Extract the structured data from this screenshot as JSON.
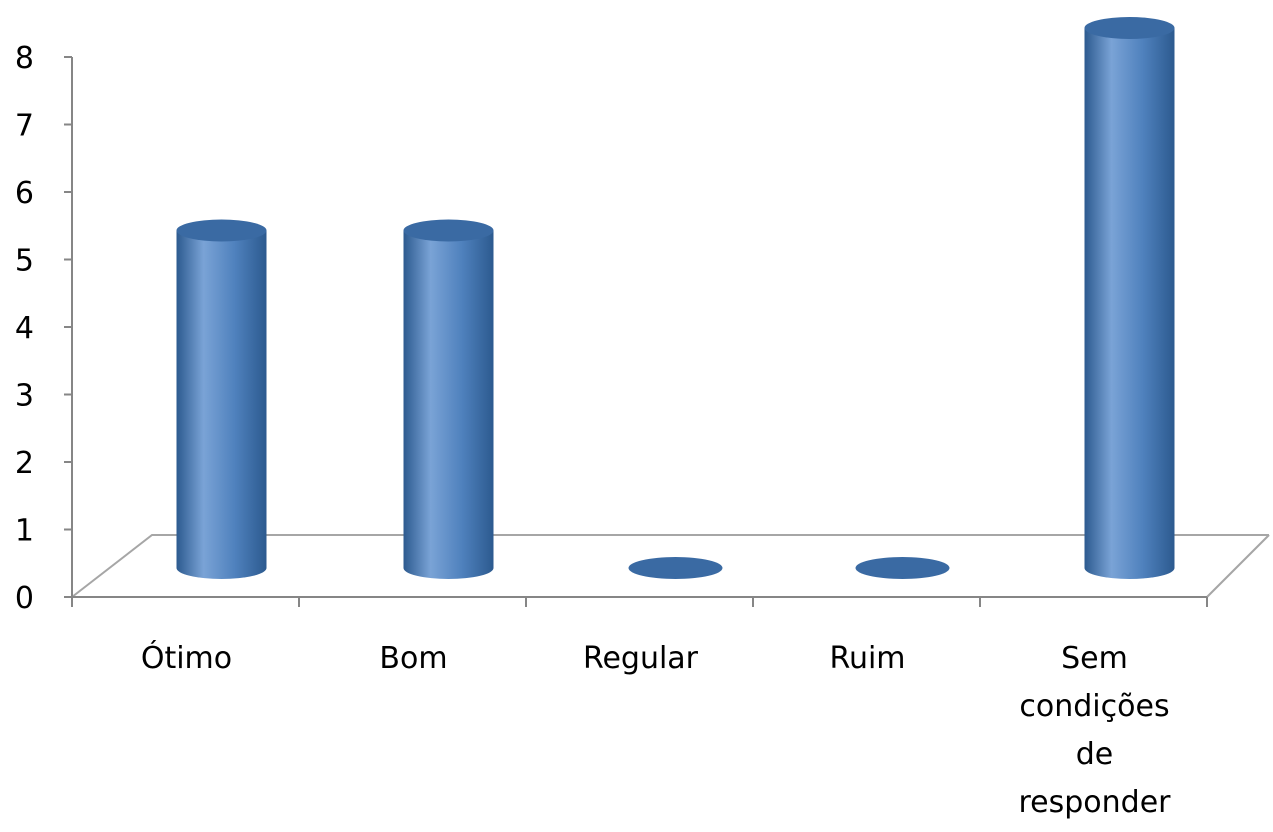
{
  "chart_data": {
    "type": "bar",
    "style": "3d-cylinder",
    "categories": [
      "Ótimo",
      "Bom",
      "Regular",
      "Ruim",
      "Sem condições de responder"
    ],
    "category_label_lines": [
      [
        "Ótimo"
      ],
      [
        "Bom"
      ],
      [
        "Regular"
      ],
      [
        "Ruim"
      ],
      [
        "Sem",
        "condições",
        "de",
        "responder"
      ]
    ],
    "values": [
      5,
      5,
      0,
      0,
      8
    ],
    "ylim": [
      0,
      8
    ],
    "yticks": [
      "0",
      "1",
      "2",
      "3",
      "4",
      "5",
      "6",
      "7",
      "8"
    ],
    "grid": false,
    "legend": "none",
    "title": "",
    "xlabel": "",
    "ylabel": "",
    "colors": {
      "bar_body": "#4f81bd",
      "bar_dark": "#2c5a8f",
      "bar_light": "#7aa3d6",
      "bar_top": "#3a6aa3",
      "axis": "#868686",
      "floor_line": "#a6a6a6"
    }
  }
}
